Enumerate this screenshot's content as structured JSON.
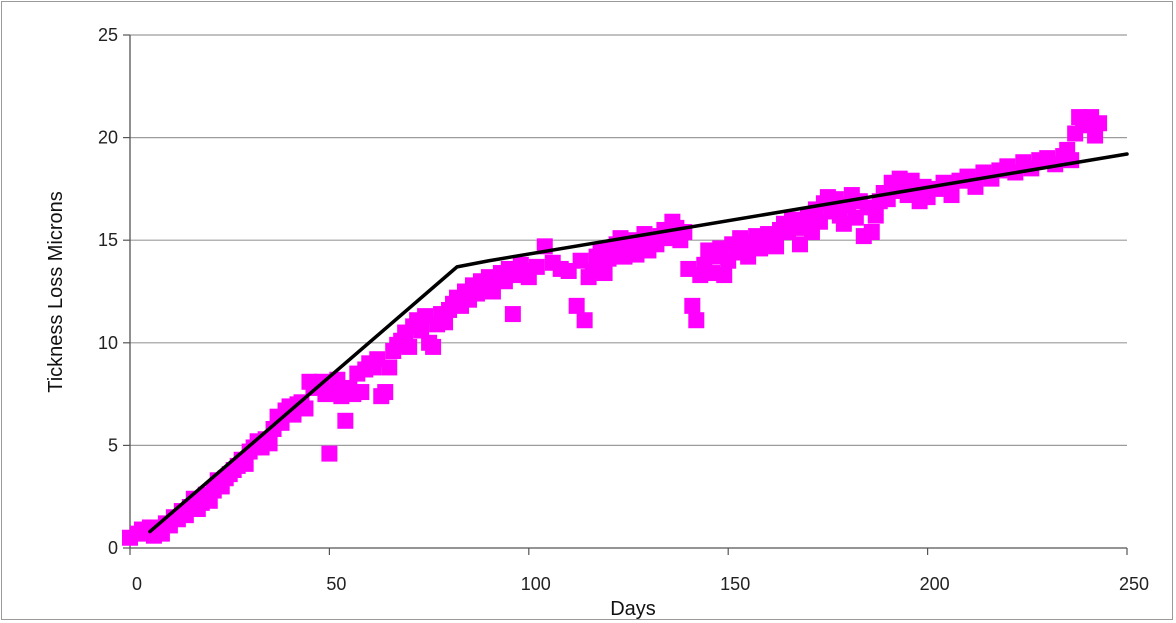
{
  "chart_data": {
    "type": "scatter",
    "title": "",
    "xlabel": "Days",
    "ylabel": "Tickness Loss Microns",
    "xlim": [
      0,
      250
    ],
    "ylim": [
      0,
      25
    ],
    "x_ticks": [
      "0",
      "50",
      "100",
      "150",
      "200",
      "250"
    ],
    "y_ticks": [
      "0",
      "5",
      "10",
      "15",
      "20",
      "25"
    ],
    "grid": "horizontal",
    "legend": "none",
    "series": [
      {
        "style": "scatter",
        "marker": "square",
        "color": "#ff00ff",
        "points": [
          [
            0,
            0.5
          ],
          [
            2,
            0.7
          ],
          [
            3,
            0.9
          ],
          [
            5,
            1.0
          ],
          [
            6,
            0.6
          ],
          [
            7,
            0.9
          ],
          [
            8,
            0.7
          ],
          [
            9,
            1.2
          ],
          [
            10,
            1.1
          ],
          [
            11,
            1.5
          ],
          [
            12,
            1.4
          ],
          [
            13,
            1.8
          ],
          [
            14,
            1.6
          ],
          [
            15,
            2.0
          ],
          [
            16,
            2.4
          ],
          [
            17,
            1.9
          ],
          [
            18,
            2.2
          ],
          [
            19,
            2.6
          ],
          [
            20,
            2.3
          ],
          [
            21,
            2.8
          ],
          [
            22,
            3.3
          ],
          [
            23,
            3.0
          ],
          [
            24,
            3.4
          ],
          [
            25,
            3.6
          ],
          [
            26,
            3.8
          ],
          [
            27,
            4.0
          ],
          [
            28,
            4.3
          ],
          [
            29,
            4.1
          ],
          [
            30,
            4.7
          ],
          [
            31,
            4.9
          ],
          [
            32,
            5.2
          ],
          [
            33,
            4.9
          ],
          [
            34,
            5.3
          ],
          [
            35,
            5.1
          ],
          [
            36,
            5.8
          ],
          [
            37,
            6.4
          ],
          [
            38,
            6.1
          ],
          [
            39,
            6.7
          ],
          [
            40,
            6.9
          ],
          [
            41,
            6.5
          ],
          [
            42,
            7.0
          ],
          [
            43,
            7.1
          ],
          [
            44,
            6.8
          ],
          [
            45,
            8.1
          ],
          [
            46,
            7.8
          ],
          [
            47,
            8.0
          ],
          [
            48,
            8.1
          ],
          [
            49,
            7.5
          ],
          [
            50,
            4.6
          ],
          [
            51,
            7.6
          ],
          [
            52,
            8.2
          ],
          [
            53,
            7.4
          ],
          [
            54,
            6.2
          ],
          [
            55,
            7.8
          ],
          [
            56,
            7.5
          ],
          [
            57,
            8.5
          ],
          [
            58,
            7.6
          ],
          [
            59,
            8.7
          ],
          [
            60,
            9.0
          ],
          [
            61,
            8.8
          ],
          [
            62,
            9.2
          ],
          [
            63,
            7.4
          ],
          [
            64,
            7.6
          ],
          [
            65,
            8.8
          ],
          [
            66,
            9.6
          ],
          [
            67,
            9.9
          ],
          [
            68,
            10.1
          ],
          [
            69,
            10.5
          ],
          [
            70,
            9.8
          ],
          [
            71,
            10.8
          ],
          [
            72,
            11.1
          ],
          [
            73,
            10.6
          ],
          [
            74,
            11.3
          ],
          [
            75,
            10.0
          ],
          [
            76,
            9.8
          ],
          [
            77,
            10.9
          ],
          [
            78,
            11.4
          ],
          [
            79,
            11.0
          ],
          [
            80,
            11.6
          ],
          [
            81,
            11.9
          ],
          [
            82,
            12.2
          ],
          [
            83,
            11.8
          ],
          [
            84,
            12.5
          ],
          [
            85,
            12.1
          ],
          [
            86,
            12.8
          ],
          [
            87,
            12.4
          ],
          [
            88,
            13.0
          ],
          [
            89,
            12.7
          ],
          [
            90,
            13.2
          ],
          [
            91,
            12.5
          ],
          [
            92,
            13.1
          ],
          [
            93,
            13.4
          ],
          [
            94,
            13.0
          ],
          [
            95,
            13.6
          ],
          [
            96,
            11.4
          ],
          [
            97,
            13.3
          ],
          [
            98,
            13.8
          ],
          [
            99,
            13.5
          ],
          [
            100,
            13.2
          ],
          [
            102,
            13.7
          ],
          [
            104,
            14.7
          ],
          [
            106,
            13.9
          ],
          [
            108,
            13.6
          ],
          [
            110,
            13.5
          ],
          [
            112,
            11.8
          ],
          [
            113,
            14.0
          ],
          [
            114,
            11.1
          ],
          [
            115,
            13.2
          ],
          [
            116,
            13.5
          ],
          [
            117,
            14.2
          ],
          [
            118,
            14.5
          ],
          [
            119,
            13.4
          ],
          [
            120,
            14.1
          ],
          [
            121,
            14.4
          ],
          [
            122,
            14.8
          ],
          [
            123,
            15.1
          ],
          [
            124,
            14.2
          ],
          [
            125,
            14.6
          ],
          [
            126,
            15.0
          ],
          [
            127,
            14.3
          ],
          [
            128,
            14.7
          ],
          [
            129,
            15.3
          ],
          [
            130,
            14.5
          ],
          [
            131,
            15.0
          ],
          [
            132,
            14.8
          ],
          [
            133,
            15.2
          ],
          [
            134,
            15.5
          ],
          [
            135,
            15.1
          ],
          [
            136,
            15.9
          ],
          [
            137,
            15.6
          ],
          [
            138,
            15.0
          ],
          [
            139,
            15.4
          ],
          [
            140,
            13.6
          ],
          [
            141,
            11.8
          ],
          [
            142,
            11.1
          ],
          [
            143,
            13.3
          ],
          [
            144,
            13.8
          ],
          [
            145,
            14.5
          ],
          [
            146,
            13.4
          ],
          [
            147,
            14.2
          ],
          [
            148,
            14.6
          ],
          [
            149,
            13.3
          ],
          [
            150,
            14.0
          ],
          [
            151,
            14.8
          ],
          [
            152,
            14.4
          ],
          [
            153,
            15.1
          ],
          [
            154,
            14.5
          ],
          [
            155,
            14.2
          ],
          [
            156,
            14.9
          ],
          [
            157,
            15.2
          ],
          [
            158,
            14.6
          ],
          [
            159,
            14.9
          ],
          [
            160,
            15.3
          ],
          [
            161,
            15.0
          ],
          [
            162,
            14.7
          ],
          [
            163,
            15.5
          ],
          [
            164,
            15.8
          ],
          [
            165,
            15.4
          ],
          [
            166,
            16.0
          ],
          [
            167,
            15.6
          ],
          [
            168,
            14.8
          ],
          [
            169,
            15.7
          ],
          [
            170,
            16.2
          ],
          [
            171,
            15.4
          ],
          [
            172,
            16.5
          ],
          [
            173,
            15.9
          ],
          [
            174,
            16.8
          ],
          [
            175,
            17.1
          ],
          [
            176,
            16.4
          ],
          [
            177,
            17.0
          ],
          [
            178,
            16.2
          ],
          [
            179,
            15.8
          ],
          [
            180,
            16.7
          ],
          [
            181,
            17.2
          ],
          [
            182,
            16.1
          ],
          [
            183,
            16.9
          ],
          [
            184,
            15.2
          ],
          [
            185,
            16.6
          ],
          [
            186,
            15.4
          ],
          [
            187,
            16.2
          ],
          [
            188,
            16.9
          ],
          [
            189,
            17.3
          ],
          [
            190,
            17.0
          ],
          [
            191,
            17.8
          ],
          [
            192,
            17.4
          ],
          [
            193,
            18.0
          ],
          [
            194,
            17.6
          ],
          [
            195,
            17.2
          ],
          [
            196,
            17.9
          ],
          [
            197,
            17.4
          ],
          [
            198,
            16.9
          ],
          [
            199,
            17.6
          ],
          [
            200,
            17.1
          ],
          [
            202,
            17.5
          ],
          [
            204,
            17.8
          ],
          [
            206,
            17.2
          ],
          [
            208,
            17.9
          ],
          [
            210,
            18.1
          ],
          [
            212,
            17.6
          ],
          [
            214,
            18.3
          ],
          [
            216,
            18.0
          ],
          [
            218,
            18.4
          ],
          [
            220,
            18.6
          ],
          [
            222,
            18.3
          ],
          [
            224,
            18.8
          ],
          [
            226,
            18.5
          ],
          [
            228,
            18.9
          ],
          [
            230,
            19.0
          ],
          [
            232,
            18.7
          ],
          [
            234,
            19.1
          ],
          [
            235,
            19.4
          ],
          [
            236,
            18.9
          ],
          [
            237,
            20.2
          ],
          [
            238,
            21.0
          ],
          [
            239,
            20.8
          ],
          [
            240,
            20.6
          ],
          [
            241,
            21.0
          ],
          [
            242,
            20.1
          ],
          [
            243,
            20.7
          ]
        ]
      },
      {
        "style": "line",
        "color": "#000000",
        "points": [
          [
            5,
            0.8
          ],
          [
            82,
            13.7
          ],
          [
            90,
            14.0
          ],
          [
            250,
            19.2
          ]
        ]
      }
    ]
  }
}
